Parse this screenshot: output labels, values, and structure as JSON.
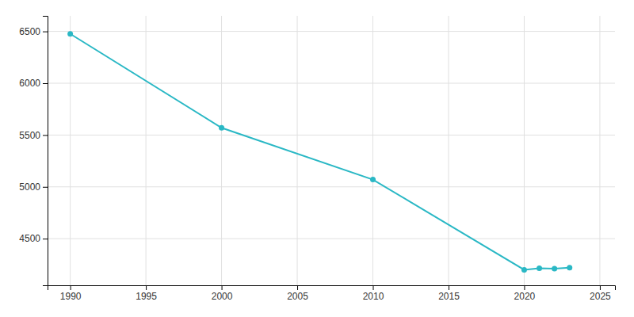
{
  "chart_data": {
    "type": "line",
    "x": [
      1990,
      2000,
      2010,
      2020,
      2021,
      2022,
      2023
    ],
    "values": [
      6476,
      5570,
      5070,
      4200,
      4215,
      4210,
      4220
    ],
    "color": "#2ab8c5",
    "marker": "circle",
    "xlim": [
      1988.5,
      2026
    ],
    "ylim": [
      4050,
      6650
    ],
    "xticks": [
      1990,
      1995,
      2000,
      2005,
      2010,
      2015,
      2020,
      2025
    ],
    "yticks": [
      4500,
      5000,
      5500,
      6000,
      6500
    ],
    "grid": true
  }
}
